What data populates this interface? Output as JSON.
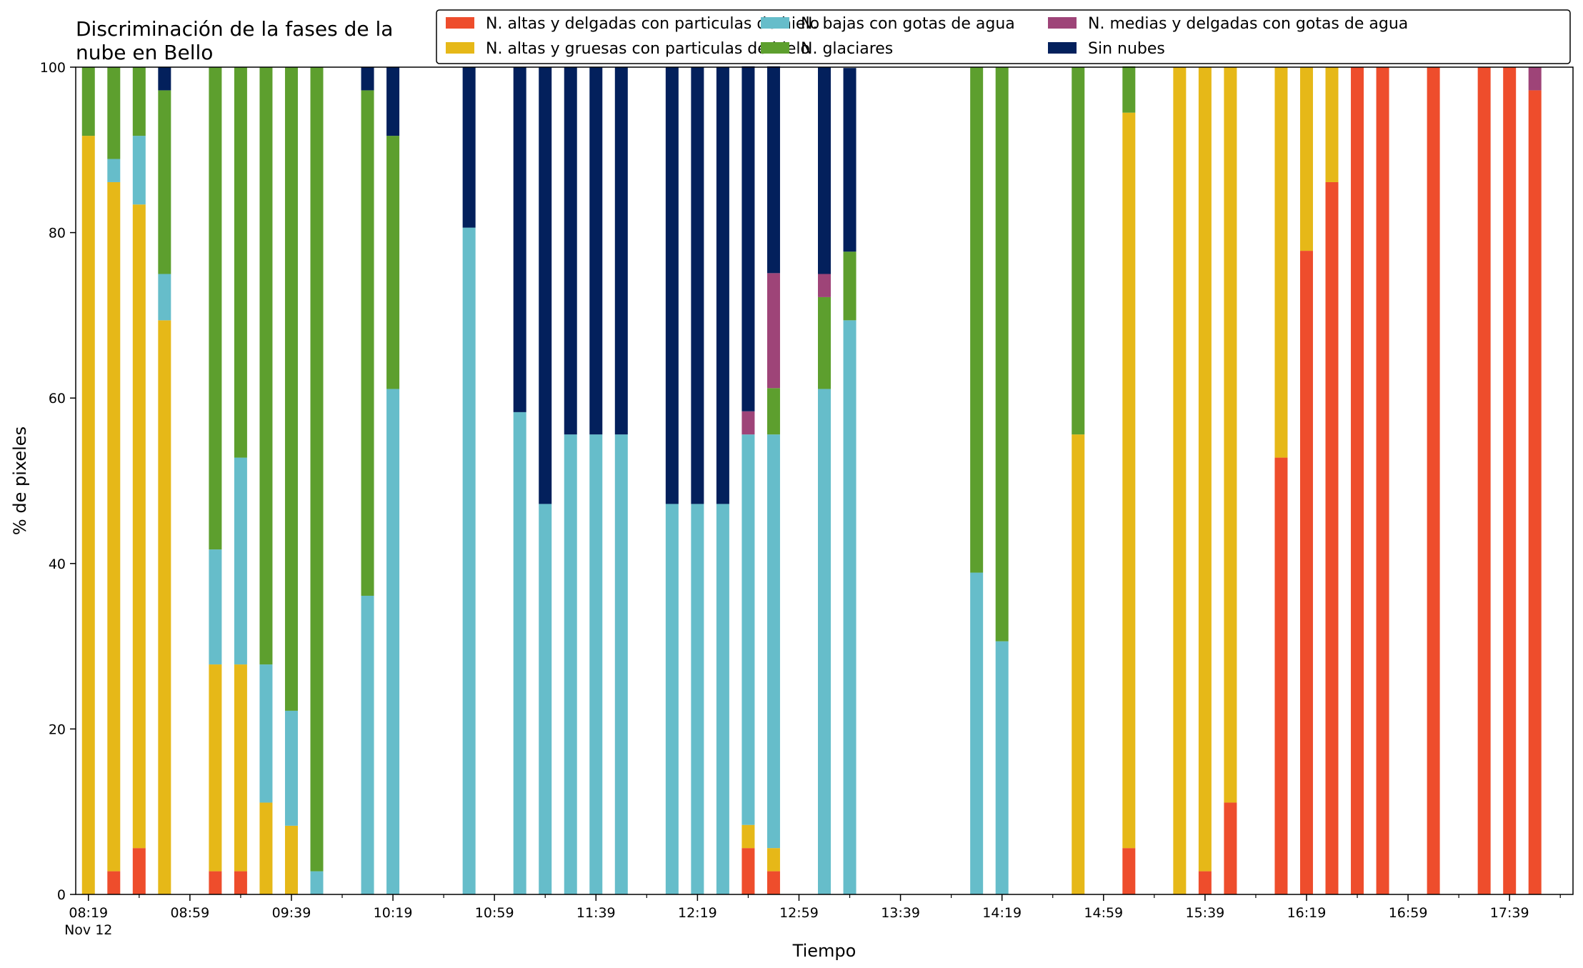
{
  "chart_data": {
    "type": "bar",
    "stacked": true,
    "title_lines": [
      "Discriminación de la fases de la",
      "nube en Bello"
    ],
    "xlabel": "Tiempo",
    "ylabel": "% de pixeles",
    "ylim": [
      0,
      100
    ],
    "yticks": [
      0,
      20,
      40,
      60,
      80,
      100
    ],
    "xlim": [
      "08:14",
      "18:04"
    ],
    "xtick_labels": [
      {
        "time": "08:19",
        "label": "08:19",
        "sublabel": "Nov 12"
      },
      {
        "time": "08:59",
        "label": "08:59"
      },
      {
        "time": "09:39",
        "label": "09:39"
      },
      {
        "time": "10:19",
        "label": "10:19"
      },
      {
        "time": "10:59",
        "label": "10:59"
      },
      {
        "time": "11:39",
        "label": "11:39"
      },
      {
        "time": "12:19",
        "label": "12:19"
      },
      {
        "time": "12:59",
        "label": "12:59"
      },
      {
        "time": "13:39",
        "label": "13:39"
      },
      {
        "time": "14:19",
        "label": "14:19"
      },
      {
        "time": "14:59",
        "label": "14:59"
      },
      {
        "time": "15:39",
        "label": "15:39"
      },
      {
        "time": "16:19",
        "label": "16:19"
      },
      {
        "time": "16:59",
        "label": "16:59"
      },
      {
        "time": "17:39",
        "label": "17:39"
      }
    ],
    "legend": {
      "position": "top-right",
      "columns": 3
    },
    "series": [
      {
        "key": "hielo_delgadas",
        "name": "N. altas y delgadas con particulas de hielo",
        "color": "#ee4d2c"
      },
      {
        "key": "hielo_gruesas",
        "name": "N. altas y gruesas con particulas de hielo",
        "color": "#e6b818"
      },
      {
        "key": "bajas_agua",
        "name": "N. bajas con gotas de agua",
        "color": "#66bdca"
      },
      {
        "key": "glaciares",
        "name": "N. glaciares",
        "color": "#5d9f2e"
      },
      {
        "key": "medias_agua",
        "name": "N. medias y delgadas con gotas de agua",
        "color": "#9e4478"
      },
      {
        "key": "sin_nubes",
        "name": "Sin nubes",
        "color": "#03205c"
      }
    ],
    "bars": [
      {
        "time": "08:19",
        "values": [
          0,
          91.7,
          0,
          8.3,
          0,
          0
        ]
      },
      {
        "time": "08:29",
        "values": [
          2.8,
          83.3,
          2.8,
          11.1,
          0,
          0
        ]
      },
      {
        "time": "08:39",
        "values": [
          5.6,
          77.8,
          8.3,
          8.3,
          0,
          0
        ]
      },
      {
        "time": "08:49",
        "values": [
          0,
          69.4,
          5.6,
          22.2,
          0,
          2.8
        ]
      },
      {
        "time": "09:09",
        "values": [
          2.8,
          25,
          13.9,
          58.3,
          0,
          0
        ]
      },
      {
        "time": "09:19",
        "values": [
          2.8,
          25,
          25,
          47.2,
          0,
          0
        ]
      },
      {
        "time": "09:29",
        "values": [
          0,
          11.1,
          16.7,
          72.2,
          0,
          0
        ]
      },
      {
        "time": "09:39",
        "values": [
          0,
          8.3,
          13.9,
          77.8,
          0,
          0
        ]
      },
      {
        "time": "09:49",
        "values": [
          0,
          0,
          2.8,
          97.2,
          0,
          0
        ]
      },
      {
        "time": "10:09",
        "values": [
          0,
          0,
          36.1,
          61.1,
          0,
          2.8
        ]
      },
      {
        "time": "10:19",
        "values": [
          0,
          0,
          61.1,
          30.6,
          0,
          8.3
        ]
      },
      {
        "time": "10:49",
        "values": [
          0,
          0,
          80.6,
          0,
          0,
          19.4
        ]
      },
      {
        "time": "11:09",
        "values": [
          0,
          0,
          58.3,
          0,
          0,
          41.7
        ]
      },
      {
        "time": "11:19",
        "values": [
          0,
          0,
          47.2,
          0,
          0,
          52.8
        ]
      },
      {
        "time": "11:29",
        "values": [
          0,
          0,
          55.6,
          0,
          0,
          44.4
        ]
      },
      {
        "time": "11:39",
        "values": [
          0,
          0,
          55.6,
          0,
          0,
          44.4
        ]
      },
      {
        "time": "11:49",
        "values": [
          0,
          0,
          55.6,
          0,
          0,
          44.4
        ]
      },
      {
        "time": "12:09",
        "values": [
          0,
          0,
          47.2,
          0,
          0,
          52.8
        ]
      },
      {
        "time": "12:19",
        "values": [
          0,
          0,
          47.2,
          0,
          0,
          52.8
        ]
      },
      {
        "time": "12:29",
        "values": [
          0,
          0,
          47.2,
          0,
          0,
          52.8
        ]
      },
      {
        "time": "12:39",
        "values": [
          5.6,
          2.8,
          47.2,
          0,
          2.8,
          41.7
        ]
      },
      {
        "time": "12:49",
        "values": [
          2.8,
          2.8,
          50,
          5.6,
          13.9,
          25
        ]
      },
      {
        "time": "13:09",
        "values": [
          0,
          0,
          61.1,
          11.1,
          2.8,
          25
        ]
      },
      {
        "time": "13:19",
        "values": [
          0,
          0,
          69.4,
          8.3,
          0,
          22.2
        ]
      },
      {
        "time": "14:09",
        "values": [
          0,
          0,
          38.9,
          61.1,
          0,
          0
        ]
      },
      {
        "time": "14:19",
        "values": [
          0,
          0,
          30.6,
          69.4,
          0,
          0
        ]
      },
      {
        "time": "14:49",
        "values": [
          0,
          55.6,
          0,
          44.4,
          0,
          0
        ]
      },
      {
        "time": "15:09",
        "values": [
          5.6,
          88.9,
          0,
          5.6,
          0,
          0
        ]
      },
      {
        "time": "15:29",
        "values": [
          0,
          100,
          0,
          0,
          0,
          0
        ]
      },
      {
        "time": "15:39",
        "values": [
          2.8,
          97.2,
          0,
          0,
          0,
          0
        ]
      },
      {
        "time": "15:49",
        "values": [
          11.1,
          88.9,
          0,
          0,
          0,
          0
        ]
      },
      {
        "time": "16:09",
        "values": [
          52.8,
          47.2,
          0,
          0,
          0,
          0
        ]
      },
      {
        "time": "16:19",
        "values": [
          77.8,
          22.2,
          0,
          0,
          0,
          0
        ]
      },
      {
        "time": "16:29",
        "values": [
          86.1,
          13.9,
          0,
          0,
          0,
          0
        ]
      },
      {
        "time": "16:39",
        "values": [
          100,
          0,
          0,
          0,
          0,
          0
        ]
      },
      {
        "time": "16:49",
        "values": [
          100,
          0,
          0,
          0,
          0,
          0
        ]
      },
      {
        "time": "17:09",
        "values": [
          100,
          0,
          0,
          0,
          0,
          0
        ]
      },
      {
        "time": "17:29",
        "values": [
          100,
          0,
          0,
          0,
          0,
          0
        ]
      },
      {
        "time": "17:39",
        "values": [
          100,
          0,
          0,
          0,
          0,
          0
        ]
      },
      {
        "time": "17:49",
        "values": [
          97.2,
          0,
          0,
          0,
          2.8,
          0
        ]
      }
    ]
  }
}
